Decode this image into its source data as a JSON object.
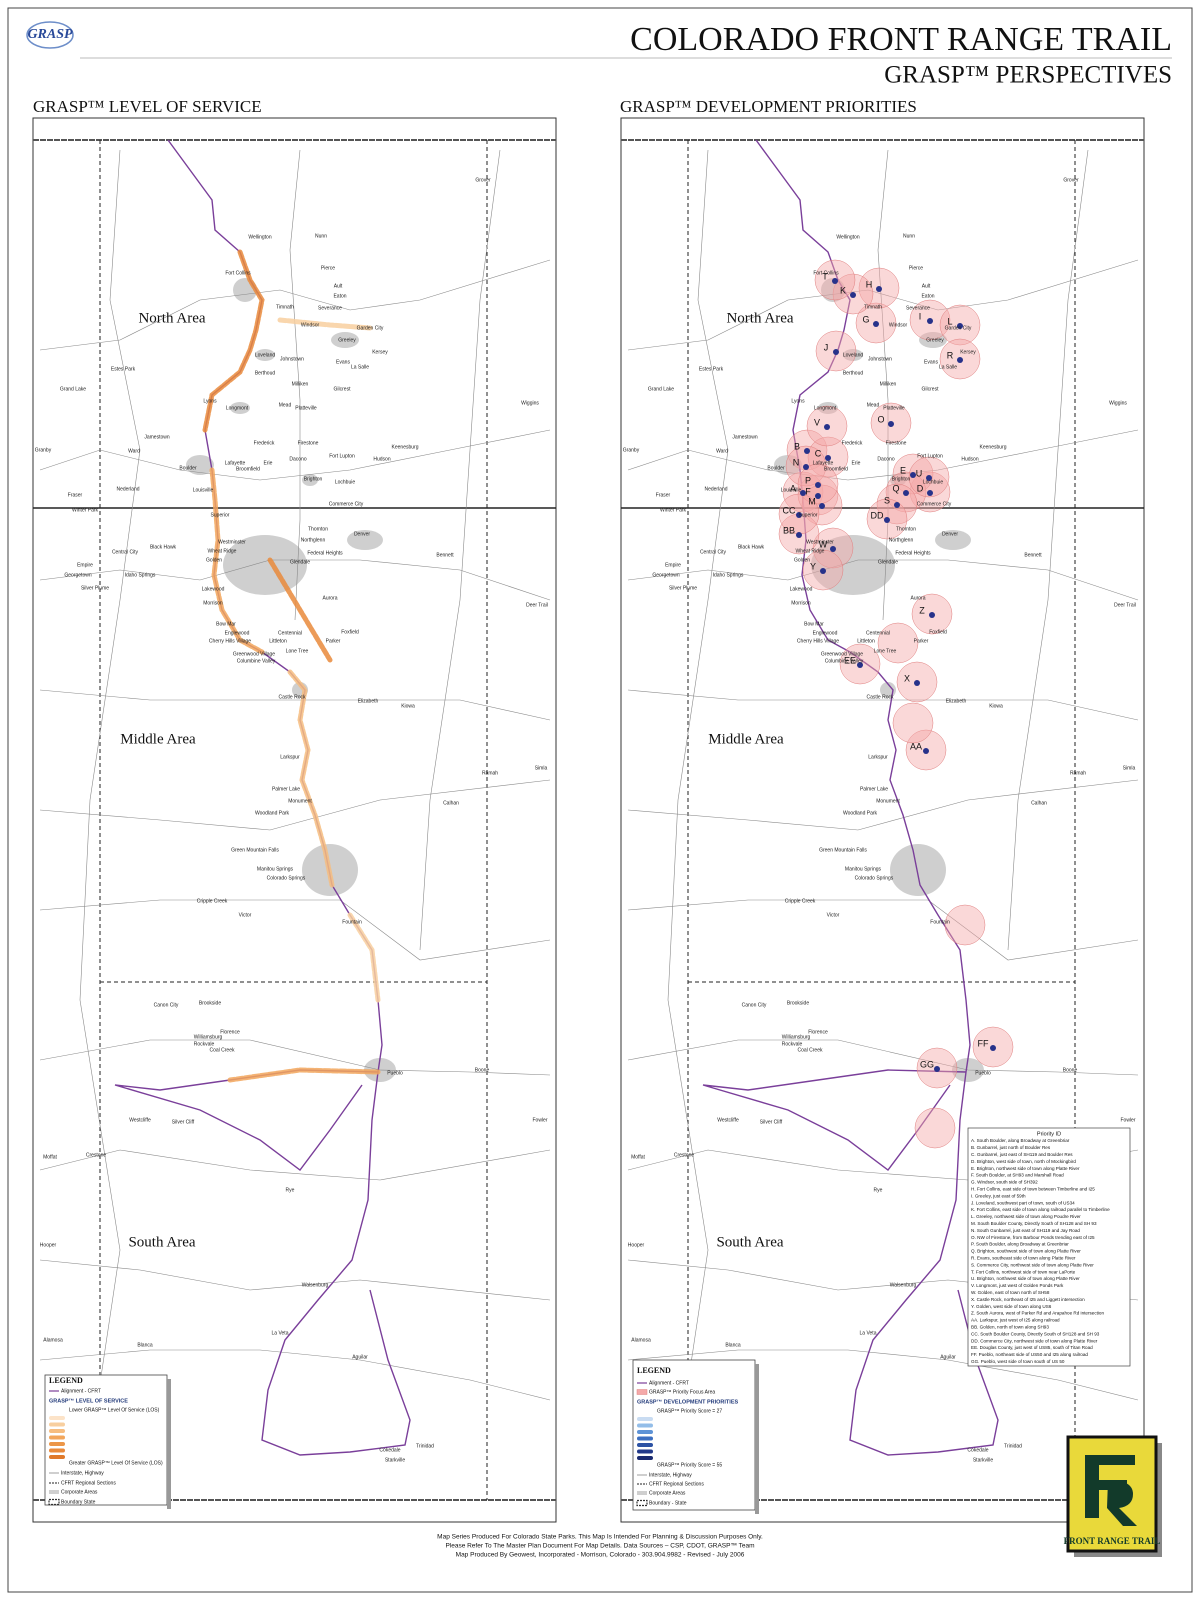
{
  "header": {
    "logo": "GRASP",
    "title": "COLORADO FRONT RANGE TRAIL",
    "subtitle": "GRASP™ PERSPECTIVES"
  },
  "panels": [
    {
      "title": "GRASP™ LEVEL OF SERVICE"
    },
    {
      "title": "GRASP™ DEVELOPMENT PRIORITIES"
    }
  ],
  "areas": [
    "North Area",
    "Middle Area",
    "South Area"
  ],
  "towns": [
    "Grover",
    "Wellington",
    "Nunn",
    "Pierce",
    "Fort Collins",
    "Ault",
    "Eaton",
    "Timnath",
    "Severance",
    "Windsor",
    "Garden City",
    "Greeley",
    "Loveland",
    "Johnstown",
    "Kersey",
    "Evans",
    "La Salle",
    "Berthoud",
    "Estes Park",
    "Milliken",
    "Gilcrest",
    "Grand Lake",
    "Lyons",
    "Longmont",
    "Mead",
    "Platteville",
    "Wiggins",
    "Jamestown",
    "Lafayette",
    "Frederick",
    "Firestone",
    "Keenesburg",
    "Granby",
    "Ward",
    "Boulder",
    "Erie",
    "Dacono",
    "Fort Lupton",
    "Hudson",
    "Nederland",
    "Broomfield",
    "Brighton",
    "Lochbuie",
    "Louisville",
    "Fraser",
    "Winter Park",
    "Superior",
    "Commerce City",
    "Thornton",
    "Northglenn",
    "Denver",
    "Westminster",
    "Black Hawk",
    "Central City",
    "Wheat Ridge",
    "Federal Heights",
    "Bennett",
    "Golden",
    "Glendale",
    "Empire",
    "Georgetown",
    "Idaho Springs",
    "Silver Plume",
    "Lakewood",
    "Aurora",
    "Morrison",
    "Deer Trail",
    "Bow Mar",
    "Englewood",
    "Foxfield",
    "Centennial",
    "Littleton",
    "Cherry Hills Village",
    "Parker",
    "Lone Tree",
    "Greenwood Village",
    "Columbine Valley",
    "Castle Rock",
    "Elizabeth",
    "Kiowa",
    "Larkspur",
    "Simla",
    "Ramah",
    "Palmer Lake",
    "Monument",
    "Calhan",
    "Woodland Park",
    "Green Mountain Falls",
    "Manitou Springs",
    "Colorado Springs",
    "Cripple Creek",
    "Victor",
    "Fountain",
    "Canon City",
    "Brookside",
    "Florence",
    "Williamsburg",
    "Rockvale",
    "Coal Creek",
    "Pueblo",
    "Boone",
    "Westcliffe",
    "Silver Cliff",
    "Fowler",
    "Crestone",
    "Moffat",
    "Rye",
    "Hooper",
    "Walsenburg",
    "La Veta",
    "Alamosa",
    "Blanca",
    "Aguilar",
    "Trinidad",
    "Cokedale",
    "Starkville"
  ],
  "markers": [
    "A",
    "B",
    "C",
    "D",
    "E",
    "F",
    "G",
    "H",
    "I",
    "J",
    "K",
    "L",
    "M",
    "N",
    "O",
    "P",
    "Q",
    "R",
    "S",
    "T",
    "U",
    "V",
    "W",
    "X",
    "Y",
    "Z",
    "AA",
    "BB",
    "CC",
    "DD",
    "EE",
    "FF",
    "GG"
  ],
  "priority_id": {
    "title": "Priority ID",
    "items": [
      "A.  South Boulder, along Broadway at Greenbriar",
      "B.  Gunbarrel, just north of Boulder Res",
      "C.  Gunbarrel, just east of SH119 and Boulder Res",
      "D.  Brighton, west side of town, north of Mockingbird",
      "E.  Brighton, northwest side of town along Platte River",
      "F.  South Boulder, at SH93 and Marshall Road",
      "G.  Windsor, south side of SH392",
      "H.  Fort Collins, east side of town between Timberline and I25",
      "I.  Greeley, just east of 59th",
      "J.  Loveland, southwest part of town, south of US34",
      "K.  Fort Collins, east side of town along railroad parallel to Timberline",
      "L.  Greeley, northwest side of town along Poudre River",
      "M.  South Boulder County, Directly South of SH128 and SH 93",
      "N.  South Gunbarrel, just east of SH119 and Jay Road",
      "O.  NW of Firestone, from Barbour Ponds trending east of I25",
      "P.  South Boulder, along Broadway at Greenbriar",
      "Q.  Brighton, southwest side of town along Platte River",
      "R.  Evans, southeast side of town along Platte River",
      "S.  Commerce City, northwest side of town along Platte River",
      "T.  Fort Collins, northwest side of town near LaPorte",
      "U.  Brighton, northwest side of town along Platte River",
      "V.  Longmont, just west of Golden Ponds Park",
      "W.  Golden, east of town north of SH58",
      "X.  Castle Rock, northeast of I25 and Liggett intersection",
      "Y.  Golden, west side of town along US6",
      "Z.  South Aurora, west of Parker Rd and Arapahoe Rd intersection",
      "AA.  Larkspur, just west of I25 along railroad",
      "BB.  Golden, north of town along SH93",
      "CC.  South Boulder County, Directly South of SH128 and SH 93",
      "DD.  Commerce City, northwest side of town along Platte River",
      "EE.  Douglas County, just west of US85, south of Titan Road",
      "FF.  Pueblo, northeast side of US50 and I25 along railroad",
      "GG.  Pueblo, west side of town south of US 50"
    ]
  },
  "legend_los": {
    "title": "LEGEND",
    "alignment": "Alignment - CFRT",
    "heading": "GRASP™ LEVEL OF SERVICE",
    "low": "Lower GRASP™ Level Of Service (LOS)",
    "high": "Greater GRASP™ Level Of Service (LOS)",
    "highway": "Interstate, Highway",
    "sections": "CFRT Regional Sections",
    "corporate": "Corporate Areas",
    "boundary": "Boundary State"
  },
  "legend_priorities": {
    "title": "LEGEND",
    "alignment": "Alignment - CFRT",
    "focus": "GRASP™ Priority Focus Area",
    "heading": "GRASP™ DEVELOPMENT PRIORITIES",
    "low": "GRASP™ Priority Score = 27",
    "high": "GRASP™ Priority Score = 55",
    "highway": "Interstate, Highway",
    "sections": "CFRT Regional Sections",
    "corporate": "Corporate Areas",
    "boundary": "Boundary - State"
  },
  "footer": [
    "Map Series Produced For Colorado State Parks.  This Map Is Intended For Planning & Discussion Purposes Only.",
    "Please Refer To The Master Plan Document For Map Details.  Data Sources – CSP, CDOT, GRASP™ Team",
    "Map Produced By Geowest, Incorporated - Morrison, Colorado - 303.904.9982 - Revised - July 2006"
  ],
  "trail_logo": "FRONT RANGE TRAIL"
}
